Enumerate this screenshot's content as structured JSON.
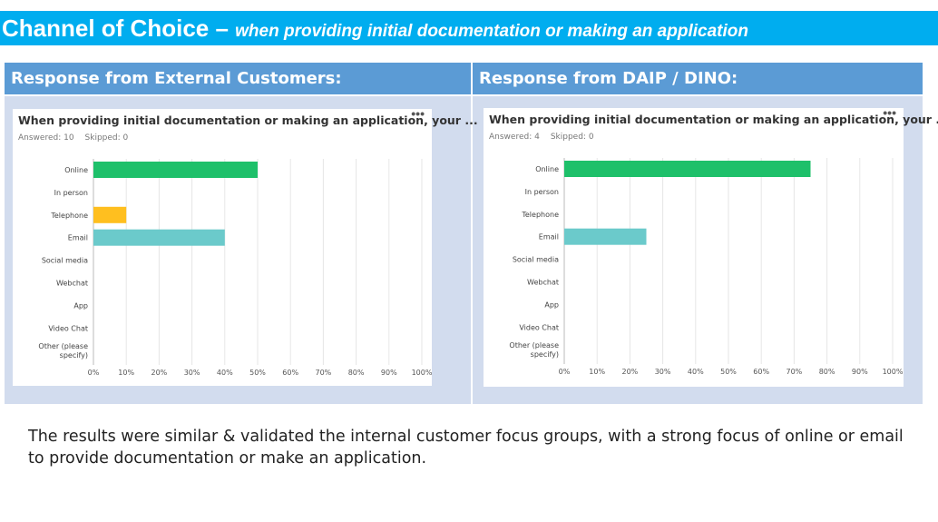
{
  "slide": {
    "title": "Channel of Choice –",
    "subtitle": "when providing initial documentation or making an application",
    "body": "The results were similar & validated the internal customer focus groups, with a strong focus of online or email to provide documentation or make an application."
  },
  "columns": [
    {
      "header": "Response from External Customers:"
    },
    {
      "header": "Response from DAIP / DINO:"
    }
  ],
  "chart_data": [
    {
      "type": "bar",
      "orientation": "horizontal",
      "title": "When providing initial documentation or making an application, your ...",
      "answered": "Answered: 10",
      "skipped": "Skipped: 0",
      "categories": [
        "Online",
        "In person",
        "Telephone",
        "Email",
        "Social media",
        "Webchat",
        "App",
        "Video Chat",
        "Other (please specify)"
      ],
      "category_lines": [
        [
          "Online"
        ],
        [
          "In person"
        ],
        [
          "Telephone"
        ],
        [
          "Email"
        ],
        [
          "Social media"
        ],
        [
          "Webchat"
        ],
        [
          "App"
        ],
        [
          "Video Chat"
        ],
        [
          "Other (please",
          "specify)"
        ]
      ],
      "values": [
        50,
        0,
        10,
        40,
        0,
        0,
        0,
        0,
        0
      ],
      "colors": [
        "#1ec06a",
        "#1ec06a",
        "#ffbf1f",
        "#6bcacb",
        "#1ec06a",
        "#1ec06a",
        "#1ec06a",
        "#1ec06a",
        "#1ec06a"
      ],
      "xlim": [
        0,
        100
      ],
      "xticks": [
        "0%",
        "10%",
        "20%",
        "30%",
        "40%",
        "50%",
        "60%",
        "70%",
        "80%",
        "90%",
        "100%"
      ],
      "grid": true
    },
    {
      "type": "bar",
      "orientation": "horizontal",
      "title": "When providing initial documentation or making an application, your ...",
      "answered": "Answered: 4",
      "skipped": "Skipped: 0",
      "categories": [
        "Online",
        "In person",
        "Telephone",
        "Email",
        "Social media",
        "Webchat",
        "App",
        "Video Chat",
        "Other (please specify)"
      ],
      "category_lines": [
        [
          "Online"
        ],
        [
          "In person"
        ],
        [
          "Telephone"
        ],
        [
          "Email"
        ],
        [
          "Social media"
        ],
        [
          "Webchat"
        ],
        [
          "App"
        ],
        [
          "Video Chat"
        ],
        [
          "Other (please",
          "specify)"
        ]
      ],
      "values": [
        75,
        0,
        0,
        25,
        0,
        0,
        0,
        0,
        0
      ],
      "colors": [
        "#1ec06a",
        "#1ec06a",
        "#ffbf1f",
        "#6bcacb",
        "#1ec06a",
        "#1ec06a",
        "#1ec06a",
        "#1ec06a",
        "#1ec06a"
      ],
      "xlim": [
        0,
        100
      ],
      "xticks": [
        "0%",
        "10%",
        "20%",
        "30%",
        "40%",
        "50%",
        "60%",
        "70%",
        "80%",
        "90%",
        "100%"
      ],
      "grid": true
    }
  ]
}
